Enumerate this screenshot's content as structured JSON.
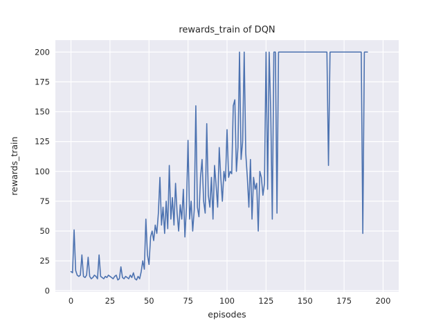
{
  "chart_data": {
    "type": "line",
    "title": "rewards_train of DQN",
    "xlabel": "episodes",
    "ylabel": "rewards_train",
    "xlim": [
      -10,
      210
    ],
    "ylim": [
      -1,
      210
    ],
    "xticks": [
      0,
      25,
      50,
      75,
      100,
      125,
      150,
      175,
      200
    ],
    "yticks": [
      0,
      25,
      50,
      75,
      100,
      125,
      150,
      175,
      200
    ],
    "grid": true,
    "legend": "none",
    "x_start": 0,
    "x_step": 1,
    "series_name": "rewards_train",
    "values": [
      16,
      15,
      51,
      17,
      13,
      12,
      13,
      30,
      12,
      11,
      13,
      28,
      12,
      10,
      11,
      13,
      12,
      10,
      30,
      12,
      11,
      10,
      12,
      11,
      13,
      12,
      11,
      10,
      12,
      13,
      9,
      10,
      20,
      11,
      10,
      12,
      11,
      10,
      13,
      11,
      15,
      10,
      9,
      12,
      10,
      16,
      25,
      18,
      60,
      30,
      22,
      45,
      50,
      42,
      55,
      48,
      65,
      95,
      55,
      70,
      48,
      75,
      52,
      105,
      60,
      78,
      55,
      90,
      65,
      50,
      72,
      60,
      85,
      45,
      70,
      126,
      60,
      75,
      50,
      68,
      155,
      70,
      62,
      95,
      110,
      75,
      65,
      140,
      80,
      70,
      95,
      60,
      105,
      88,
      70,
      120,
      95,
      75,
      100,
      92,
      135,
      95,
      100,
      98,
      155,
      160,
      100,
      120,
      200,
      110,
      125,
      200,
      115,
      95,
      70,
      110,
      60,
      95,
      85,
      90,
      50,
      100,
      95,
      80,
      90,
      200,
      85,
      200,
      150,
      60,
      200,
      200,
      65,
      200,
      200,
      200,
      200,
      200,
      200,
      200,
      200,
      200,
      200,
      200,
      200,
      200,
      200,
      200,
      200,
      200,
      200,
      200,
      200,
      200,
      200,
      200,
      200,
      200,
      200,
      200,
      200,
      200,
      200,
      200,
      200,
      105,
      200,
      200,
      200,
      200,
      200,
      200,
      200,
      200,
      200,
      200,
      200,
      200,
      200,
      200,
      200,
      200,
      200,
      200,
      200,
      200,
      200,
      48,
      200,
      200,
      200
    ],
    "colors": {
      "line": "#4c72b0",
      "plot_background": "#eaeaf2",
      "grid": "#ffffff",
      "text": "#262626",
      "figure_background": "#ffffff"
    }
  }
}
